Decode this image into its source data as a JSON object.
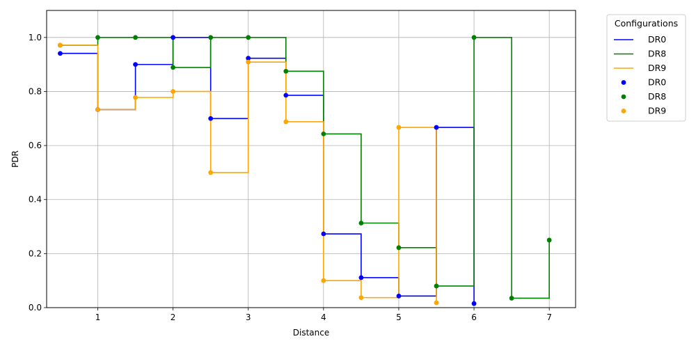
{
  "chart_data": {
    "type": "line",
    "style": "step-post with point markers",
    "xlabel": "Distance",
    "ylabel": "PDR",
    "xlim": [
      0.32,
      7.35
    ],
    "ylim": [
      0.0,
      1.1
    ],
    "xticks": [
      1,
      2,
      3,
      4,
      5,
      6,
      7
    ],
    "yticks": [
      0.0,
      0.2,
      0.4,
      0.6,
      0.8,
      1.0
    ],
    "grid": true,
    "legend_title": "Configurations",
    "legend_position": "outside-top-right",
    "series": [
      {
        "name": "DR0",
        "color": "#0000ff",
        "x": [
          0.5,
          1.0,
          1.5,
          2.0,
          2.5,
          3.0,
          3.5,
          4.0,
          4.5,
          5.0,
          5.5,
          6.0
        ],
        "y": [
          0.941,
          0.733,
          0.9,
          1.0,
          0.7,
          0.923,
          0.786,
          0.273,
          0.111,
          0.043,
          0.667,
          0.015
        ]
      },
      {
        "name": "DR8",
        "color": "#008000",
        "x": [
          0.5,
          1.0,
          1.5,
          2.0,
          2.5,
          3.0,
          3.5,
          4.0,
          4.5,
          5.0,
          5.5,
          6.0,
          6.5,
          7.0
        ],
        "y": [
          0.971,
          1.0,
          1.0,
          0.889,
          1.0,
          1.0,
          0.875,
          0.643,
          0.313,
          0.222,
          0.08,
          1.0,
          0.035,
          0.25
        ]
      },
      {
        "name": "DR9",
        "color": "#ffa500",
        "x": [
          0.5,
          1.0,
          1.5,
          2.0,
          2.5,
          3.0,
          3.5,
          4.0,
          4.5,
          5.0,
          5.5
        ],
        "y": [
          0.971,
          0.733,
          0.778,
          0.8,
          0.5,
          0.909,
          0.688,
          0.1,
          0.037,
          0.667,
          0.018
        ]
      }
    ]
  }
}
